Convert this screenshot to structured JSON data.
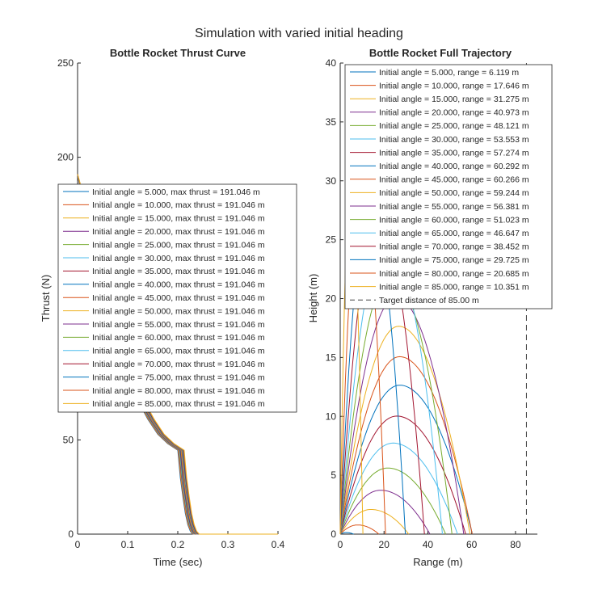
{
  "figure": {
    "suptitle": "Simulation with varied initial heading"
  },
  "colors": {
    "cycle": [
      "#0072BD",
      "#D95319",
      "#EDB120",
      "#7E2F8E",
      "#77AC30",
      "#4DBEEE",
      "#A2142F"
    ],
    "target": "#444444",
    "axis": "#262626"
  },
  "chart_data": [
    {
      "type": "line",
      "title": "Bottle Rocket Thrust Curve",
      "xlabel": "Time (sec)",
      "ylabel": "Thrust (N)",
      "xlim": [
        0,
        0.4
      ],
      "ylim": [
        0,
        250
      ],
      "xticks": [
        0,
        0.1,
        0.2,
        0.3,
        0.4
      ],
      "yticks": [
        0,
        50,
        100,
        150,
        200,
        250
      ],
      "xtick_labels": [
        "0",
        "0.1",
        "0.2",
        "0.3",
        "0.4"
      ],
      "ytick_labels": [
        "0",
        "50",
        "100",
        "150",
        "200",
        "250"
      ],
      "grid": false,
      "legend_position": "center-left",
      "thrust_points": [
        [
          0,
          191.0
        ],
        [
          0.02,
          160
        ],
        [
          0.04,
          135
        ],
        [
          0.06,
          114
        ],
        [
          0.08,
          97
        ],
        [
          0.1,
          83
        ],
        [
          0.12,
          71
        ],
        [
          0.14,
          61
        ],
        [
          0.16,
          53
        ],
        [
          0.18,
          48
        ],
        [
          0.2,
          44.5
        ],
        [
          0.205,
          30
        ],
        [
          0.21,
          20
        ],
        [
          0.215,
          11
        ],
        [
          0.22,
          5
        ],
        [
          0.225,
          1.5
        ],
        [
          0.23,
          0
        ],
        [
          0.4,
          0
        ]
      ],
      "curve_shift": 0.0008,
      "series": [
        {
          "name": "Initial angle = 5.000, max thrust = 191.046 m"
        },
        {
          "name": "Initial angle = 10.000, max thrust = 191.046 m"
        },
        {
          "name": "Initial angle = 15.000, max thrust = 191.046 m"
        },
        {
          "name": "Initial angle = 20.000, max thrust = 191.046 m"
        },
        {
          "name": "Initial angle = 25.000, max thrust = 191.046 m"
        },
        {
          "name": "Initial angle = 30.000, max thrust = 191.046 m"
        },
        {
          "name": "Initial angle = 35.000, max thrust = 191.046 m"
        },
        {
          "name": "Initial angle = 40.000, max thrust = 191.046 m"
        },
        {
          "name": "Initial angle = 45.000, max thrust = 191.046 m"
        },
        {
          "name": "Initial angle = 50.000, max thrust = 191.046 m"
        },
        {
          "name": "Initial angle = 55.000, max thrust = 191.046 m"
        },
        {
          "name": "Initial angle = 60.000, max thrust = 191.046 m"
        },
        {
          "name": "Initial angle = 65.000, max thrust = 191.046 m"
        },
        {
          "name": "Initial angle = 70.000, max thrust = 191.046 m"
        },
        {
          "name": "Initial angle = 75.000, max thrust = 191.046 m"
        },
        {
          "name": "Initial angle = 80.000, max thrust = 191.046 m"
        },
        {
          "name": "Initial angle = 85.000, max thrust = 191.046 m"
        }
      ]
    },
    {
      "type": "line",
      "title": "Bottle Rocket Full Trajectory",
      "xlabel": "Range (m)",
      "ylabel": "Height (m)",
      "xlim": [
        0,
        90
      ],
      "ylim": [
        0,
        40
      ],
      "xticks": [
        0,
        20,
        40,
        60,
        80
      ],
      "yticks": [
        0,
        5,
        10,
        15,
        20,
        25,
        30,
        35,
        40
      ],
      "xtick_labels": [
        "0",
        "20",
        "40",
        "60",
        "80"
      ],
      "ytick_labels": [
        "0",
        "5",
        "10",
        "15",
        "20",
        "25",
        "30",
        "35",
        "40"
      ],
      "grid": false,
      "legend_position": "top-right",
      "target_distance": 85.0,
      "series": [
        {
          "name": "Initial angle = 5.000, range = 6.119 m",
          "angle": 5,
          "range": 6.119
        },
        {
          "name": "Initial angle = 10.000, range = 17.646 m",
          "angle": 10,
          "range": 17.646
        },
        {
          "name": "Initial angle = 15.000, range = 31.275 m",
          "angle": 15,
          "range": 31.275
        },
        {
          "name": "Initial angle = 20.000, range = 40.973 m",
          "angle": 20,
          "range": 40.973
        },
        {
          "name": "Initial angle = 25.000, range = 48.121 m",
          "angle": 25,
          "range": 48.121
        },
        {
          "name": "Initial angle = 30.000, range = 53.553 m",
          "angle": 30,
          "range": 53.553
        },
        {
          "name": "Initial angle = 35.000, range = 57.274 m",
          "angle": 35,
          "range": 57.274
        },
        {
          "name": "Initial angle = 40.000, range = 60.292 m",
          "angle": 40,
          "range": 60.292
        },
        {
          "name": "Initial angle = 45.000, range = 60.266 m",
          "angle": 45,
          "range": 60.266
        },
        {
          "name": "Initial angle = 50.000, range = 59.244 m",
          "angle": 50,
          "range": 59.244
        },
        {
          "name": "Initial angle = 55.000, range = 56.381 m",
          "angle": 55,
          "range": 56.381
        },
        {
          "name": "Initial angle = 60.000, range = 51.023 m",
          "angle": 60,
          "range": 51.023
        },
        {
          "name": "Initial angle = 65.000, range = 46.647 m",
          "angle": 65,
          "range": 46.647
        },
        {
          "name": "Initial angle = 70.000, range = 38.452 m",
          "angle": 70,
          "range": 38.452
        },
        {
          "name": "Initial angle = 75.000, range = 29.725 m",
          "angle": 75,
          "range": 29.725
        },
        {
          "name": "Initial angle = 80.000, range = 20.685 m",
          "angle": 80,
          "range": 20.685
        },
        {
          "name": "Initial angle = 85.000, range = 10.351 m",
          "angle": 85,
          "range": 10.351
        },
        {
          "name": "Target distance of 85.00 m",
          "dashed": true
        }
      ]
    }
  ]
}
